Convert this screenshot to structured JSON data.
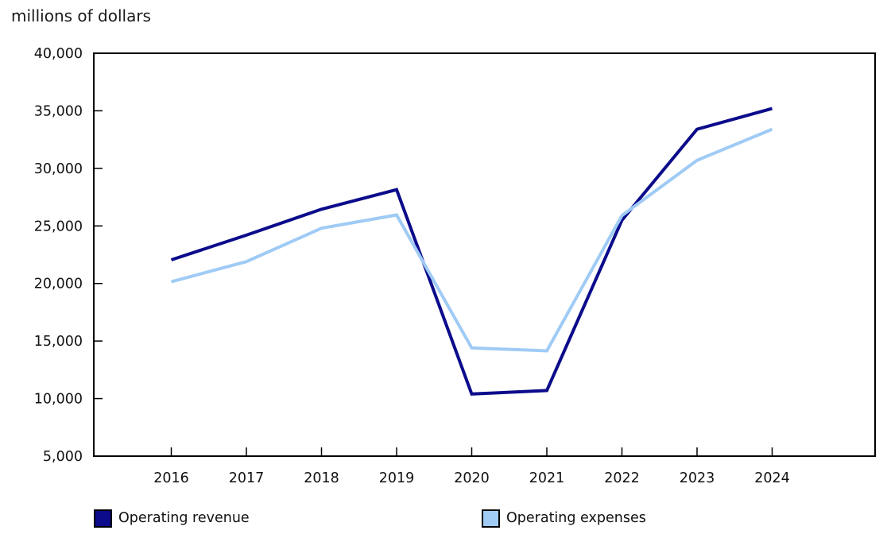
{
  "chart_data": {
    "type": "line",
    "title": "millions of dollars",
    "categories": [
      "2016",
      "2017",
      "2018",
      "2019",
      "2020",
      "2021",
      "2022",
      "2023",
      "2024"
    ],
    "series": [
      {
        "name": "Operating revenue",
        "color": "#0b0b8b",
        "values": [
          22050,
          24200,
          26450,
          28150,
          10400,
          10700,
          25500,
          33400,
          35200
        ]
      },
      {
        "name": "Operating expenses",
        "color": "#9fcbf5",
        "values": [
          20150,
          21900,
          24800,
          25950,
          14400,
          14150,
          25900,
          30700,
          33400
        ]
      }
    ],
    "xlabel": "",
    "ylabel": "millions of dollars",
    "ylim": [
      5000,
      40000
    ],
    "ytick_step": 5000,
    "grid": false,
    "legend_position": "bottom",
    "axis_color": "#000000",
    "label_color": "#111111"
  }
}
